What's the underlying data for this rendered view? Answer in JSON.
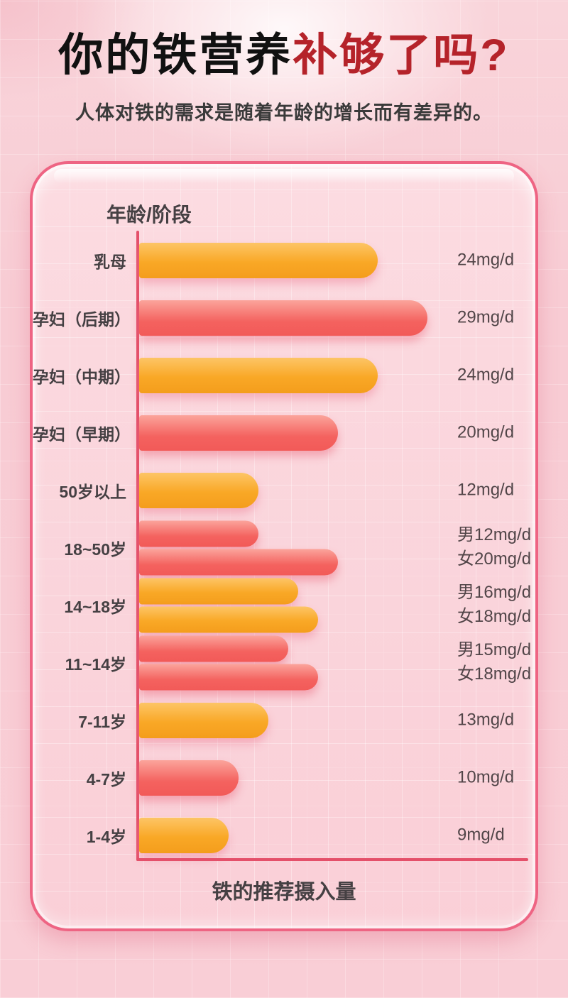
{
  "page": {
    "title_black": "你的铁营养",
    "title_red": "补够了吗?",
    "subtitle": "人体对铁的需求是随着年龄的增长而有差异的。"
  },
  "panel": {
    "axis_top_label": "年龄/阶段",
    "axis_bottom_label": "铁的推荐摄入量"
  },
  "colors": {
    "title_red": "#b5232a",
    "bar_orange": "#f9a826",
    "bar_red": "#f4625f",
    "axis_line": "#e4506a",
    "panel_border": "#ee6483",
    "text_dark": "#454043"
  },
  "chart_data": {
    "type": "bar",
    "orientation": "horizontal",
    "title": "你的铁营养补够了吗?",
    "subtitle": "人体对铁的需求是随着年龄的增长而有差异的。",
    "xlabel": "铁的推荐摄入量",
    "ylabel": "年龄/阶段",
    "unit": "mg/d",
    "xlim": [
      0,
      30
    ],
    "grid": true,
    "categories": [
      "乳母",
      "孕妇（后期）",
      "孕妇（中期）",
      "孕妇（早期）",
      "50岁以上",
      "18~50岁",
      "14~18岁",
      "11~14岁",
      "7-11岁",
      "4-7岁",
      "1-4岁"
    ],
    "rows": [
      {
        "label": "乳母",
        "bars": [
          {
            "value": 24,
            "color": "orange"
          }
        ],
        "value_lines": [
          "24mg/d"
        ]
      },
      {
        "label": "孕妇（后期）",
        "bars": [
          {
            "value": 29,
            "color": "red"
          }
        ],
        "value_lines": [
          "29mg/d"
        ]
      },
      {
        "label": "孕妇（中期）",
        "bars": [
          {
            "value": 24,
            "color": "orange"
          }
        ],
        "value_lines": [
          "24mg/d"
        ]
      },
      {
        "label": "孕妇（早期）",
        "bars": [
          {
            "value": 20,
            "color": "red"
          }
        ],
        "value_lines": [
          "20mg/d"
        ]
      },
      {
        "label": "50岁以上",
        "bars": [
          {
            "value": 12,
            "color": "orange"
          }
        ],
        "value_lines": [
          "12mg/d"
        ]
      },
      {
        "label": "18~50岁",
        "bars": [
          {
            "value": 12,
            "color": "red",
            "group": "男"
          },
          {
            "value": 20,
            "color": "red",
            "group": "女"
          }
        ],
        "value_lines": [
          "男12mg/d",
          "女20mg/d"
        ]
      },
      {
        "label": "14~18岁",
        "bars": [
          {
            "value": 16,
            "color": "orange",
            "group": "男"
          },
          {
            "value": 18,
            "color": "orange",
            "group": "女"
          }
        ],
        "value_lines": [
          "男16mg/d",
          "女18mg/d"
        ]
      },
      {
        "label": "11~14岁",
        "bars": [
          {
            "value": 15,
            "color": "red",
            "group": "男"
          },
          {
            "value": 18,
            "color": "red",
            "group": "女"
          }
        ],
        "value_lines": [
          "男15mg/d",
          "女18mg/d"
        ]
      },
      {
        "label": "7-11岁",
        "bars": [
          {
            "value": 13,
            "color": "orange"
          }
        ],
        "value_lines": [
          "13mg/d"
        ]
      },
      {
        "label": "4-7岁",
        "bars": [
          {
            "value": 10,
            "color": "red"
          }
        ],
        "value_lines": [
          "10mg/d"
        ]
      },
      {
        "label": "1-4岁",
        "bars": [
          {
            "value": 9,
            "color": "orange"
          }
        ],
        "value_lines": [
          "9mg/d"
        ]
      }
    ]
  }
}
